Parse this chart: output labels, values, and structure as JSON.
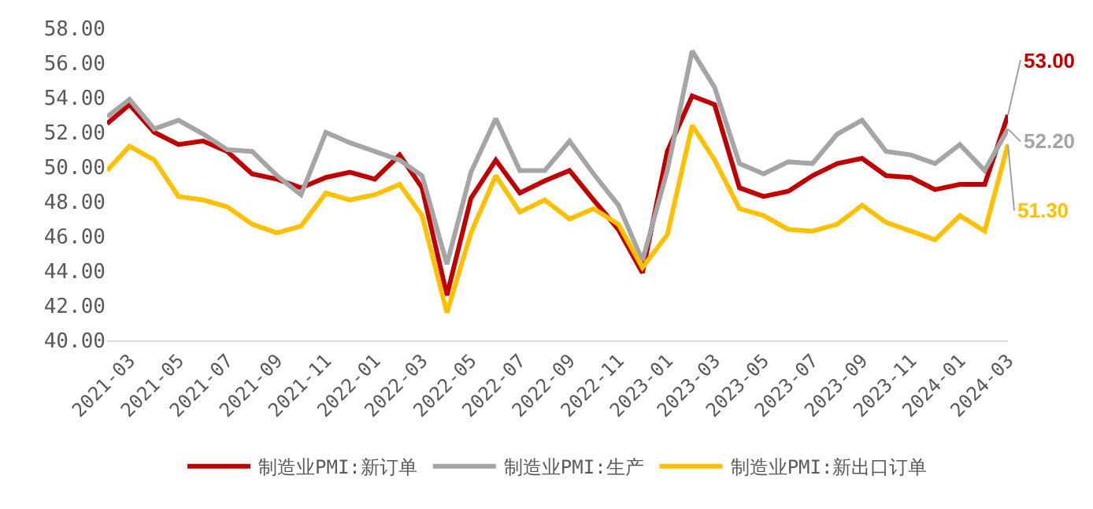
{
  "chart_data": {
    "type": "line",
    "x": [
      "2021-02",
      "2021-03",
      "2021-04",
      "2021-05",
      "2021-06",
      "2021-07",
      "2021-08",
      "2021-09",
      "2021-10",
      "2021-11",
      "2021-12",
      "2022-01",
      "2022-02",
      "2022-03",
      "2022-04",
      "2022-05",
      "2022-06",
      "2022-07",
      "2022-08",
      "2022-09",
      "2022-10",
      "2022-11",
      "2022-12",
      "2023-01",
      "2023-02",
      "2023-03",
      "2023-04",
      "2023-05",
      "2023-06",
      "2023-07",
      "2023-08",
      "2023-09",
      "2023-10",
      "2023-11",
      "2023-12",
      "2024-01",
      "2024-02",
      "2024-03"
    ],
    "series": [
      {
        "name": "制造业PMI:新订单",
        "color": "#c00000",
        "values": [
          52.5,
          53.6,
          52.0,
          51.3,
          51.5,
          50.9,
          49.6,
          49.3,
          48.8,
          49.4,
          49.7,
          49.3,
          50.7,
          48.8,
          42.6,
          48.2,
          50.4,
          48.5,
          49.2,
          49.8,
          48.1,
          46.4,
          43.9,
          50.9,
          54.1,
          53.6,
          48.8,
          48.3,
          48.6,
          49.5,
          50.2,
          50.5,
          49.5,
          49.4,
          48.7,
          49.0,
          49.0,
          53.0
        ],
        "value_labels": [
          null,
          null,
          null,
          null,
          null,
          null,
          null,
          null,
          null,
          null,
          null,
          null,
          null,
          null,
          null,
          null,
          null,
          null,
          null,
          null,
          null,
          null,
          null,
          null,
          null,
          null,
          null,
          null,
          null,
          null,
          null,
          null,
          null,
          null,
          null,
          null,
          null,
          "53.00"
        ]
      },
      {
        "name": "制造业PMI:生产",
        "color": "#a5a5a5",
        "values": [
          52.9,
          53.9,
          52.2,
          52.7,
          51.9,
          51.0,
          50.9,
          49.5,
          48.4,
          52.0,
          51.4,
          50.9,
          50.4,
          49.5,
          44.4,
          49.7,
          52.8,
          49.8,
          49.8,
          51.5,
          49.6,
          47.8,
          44.6,
          49.8,
          56.7,
          54.6,
          50.2,
          49.6,
          50.3,
          50.2,
          51.9,
          52.7,
          50.9,
          50.7,
          50.2,
          51.3,
          49.8,
          52.2
        ],
        "value_labels": [
          null,
          null,
          null,
          null,
          null,
          null,
          null,
          null,
          null,
          null,
          null,
          null,
          null,
          null,
          null,
          null,
          null,
          null,
          null,
          null,
          null,
          null,
          null,
          null,
          null,
          null,
          null,
          null,
          null,
          null,
          null,
          null,
          null,
          null,
          null,
          null,
          null,
          "52.20"
        ]
      },
      {
        "name": "制造业PMI:新出口订单",
        "color": "#ffc000",
        "values": [
          49.8,
          51.2,
          50.4,
          48.3,
          48.1,
          47.7,
          46.7,
          46.2,
          46.6,
          48.5,
          48.1,
          48.4,
          49.0,
          47.2,
          41.6,
          46.2,
          49.5,
          47.4,
          48.1,
          47.0,
          47.6,
          46.7,
          44.2,
          46.1,
          52.4,
          50.4,
          47.6,
          47.2,
          46.4,
          46.3,
          46.7,
          47.8,
          46.8,
          46.3,
          45.8,
          47.2,
          46.3,
          51.3
        ],
        "value_labels": [
          null,
          null,
          null,
          null,
          null,
          null,
          null,
          null,
          null,
          null,
          null,
          null,
          null,
          null,
          null,
          null,
          null,
          null,
          null,
          null,
          null,
          null,
          null,
          null,
          null,
          null,
          null,
          null,
          null,
          null,
          null,
          null,
          null,
          null,
          null,
          null,
          null,
          "51.30"
        ]
      }
    ],
    "ylim": [
      40,
      58
    ],
    "yticks": [
      {
        "value": 40,
        "label": "40.00"
      },
      {
        "value": 42,
        "label": "42.00"
      },
      {
        "value": 44,
        "label": "44.00"
      },
      {
        "value": 46,
        "label": "46.00"
      },
      {
        "value": 48,
        "label": "48.00"
      },
      {
        "value": 50,
        "label": "50.00"
      },
      {
        "value": 52,
        "label": "52.00"
      },
      {
        "value": 54,
        "label": "54.00"
      },
      {
        "value": 56,
        "label": "56.00"
      },
      {
        "value": 58,
        "label": "58.00"
      }
    ],
    "xlim": [
      "2021-02",
      "2024-03"
    ],
    "xticks": [
      "2021-03",
      "2021-05",
      "2021-07",
      "2021-09",
      "2021-11",
      "2022-01",
      "2022-03",
      "2022-05",
      "2022-07",
      "2022-09",
      "2022-11",
      "2023-01",
      "2023-03",
      "2023-05",
      "2023-07",
      "2023-09",
      "2023-11",
      "2024-01",
      "2024-03"
    ],
    "grid": false,
    "legend": "bottom",
    "marker": "none",
    "line_style": "solid"
  }
}
